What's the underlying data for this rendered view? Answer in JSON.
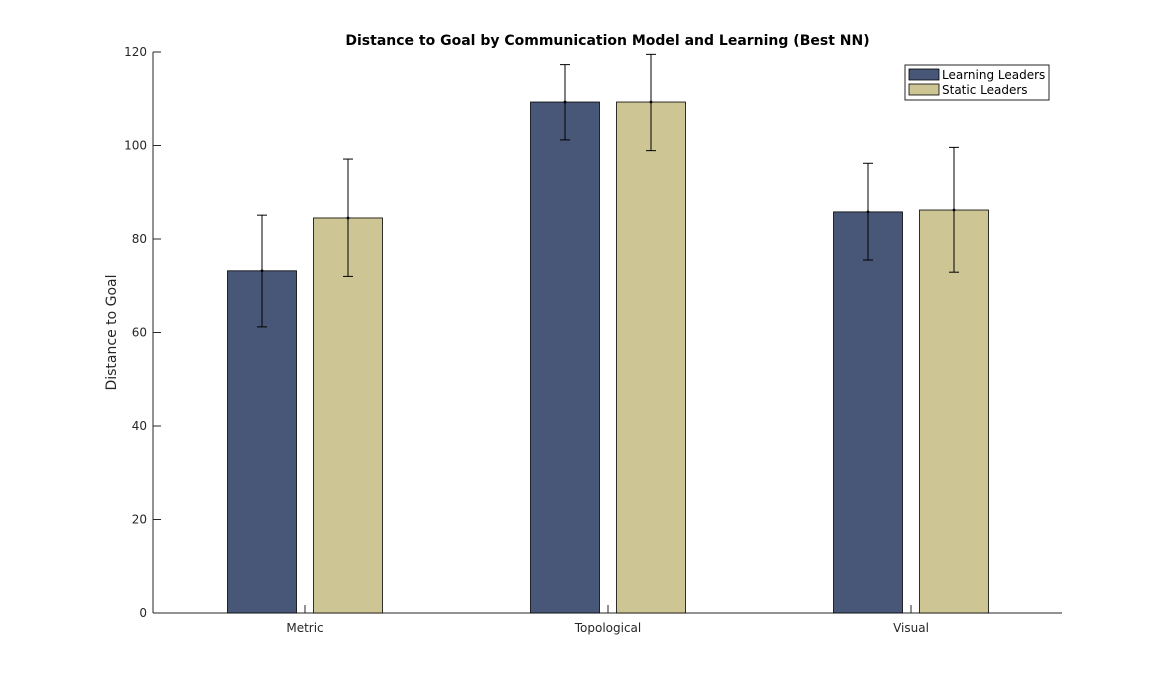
{
  "chart_data": {
    "type": "bar",
    "title": "Distance to Goal by Communication Model and Learning (Best NN)",
    "xlabel": "",
    "ylabel": "Distance to Goal",
    "categories": [
      "Metric",
      "Topological",
      "Visual"
    ],
    "ylim": [
      0,
      120
    ],
    "yticks": [
      0,
      20,
      40,
      60,
      80,
      100,
      120
    ],
    "grid": false,
    "legend_position": "top-right",
    "series": [
      {
        "name": "Learning Leaders",
        "color": "#485677",
        "values": [
          73.2,
          109.3,
          85.8
        ],
        "error_low": [
          61.2,
          101.2,
          75.5
        ],
        "error_high": [
          85.1,
          117.3,
          96.2
        ]
      },
      {
        "name": "Static Leaders",
        "color": "#cec594",
        "values": [
          84.5,
          109.3,
          86.2
        ],
        "error_low": [
          72.0,
          98.9,
          72.9
        ],
        "error_high": [
          97.1,
          119.5,
          99.6
        ]
      }
    ]
  }
}
